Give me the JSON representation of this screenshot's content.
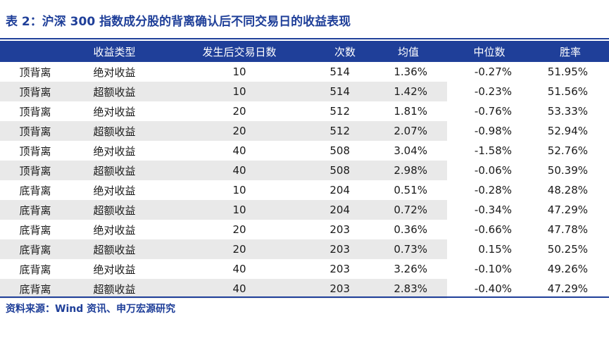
{
  "title": "表 2：沪深 300 指数成分股的背离确认后不同交易日的收益表现",
  "table": {
    "headers": [
      "",
      "收益类型",
      "发生后交易日数",
      "次数",
      "均值",
      "中位数",
      "胜率"
    ],
    "rows": [
      [
        "顶背离",
        "绝对收益",
        "10",
        "514",
        "1.36%",
        "-0.27%",
        "51.95%"
      ],
      [
        "顶背离",
        "超额收益",
        "10",
        "514",
        "1.42%",
        "-0.23%",
        "51.56%"
      ],
      [
        "顶背离",
        "绝对收益",
        "20",
        "512",
        "1.81%",
        "-0.76%",
        "53.33%"
      ],
      [
        "顶背离",
        "超额收益",
        "20",
        "512",
        "2.07%",
        "-0.98%",
        "52.94%"
      ],
      [
        "顶背离",
        "绝对收益",
        "40",
        "508",
        "3.04%",
        "-1.58%",
        "52.76%"
      ],
      [
        "顶背离",
        "超额收益",
        "40",
        "508",
        "2.98%",
        "-0.06%",
        "50.39%"
      ],
      [
        "底背离",
        "绝对收益",
        "10",
        "204",
        "0.51%",
        "-0.28%",
        "48.28%"
      ],
      [
        "底背离",
        "超额收益",
        "10",
        "204",
        "0.72%",
        "-0.34%",
        "47.29%"
      ],
      [
        "底背离",
        "绝对收益",
        "20",
        "203",
        "0.36%",
        "-0.66%",
        "47.78%"
      ],
      [
        "底背离",
        "超额收益",
        "20",
        "203",
        "0.73%",
        "0.15%",
        "50.25%"
      ],
      [
        "底背离",
        "绝对收益",
        "40",
        "203",
        "3.26%",
        "-0.10%",
        "49.26%"
      ],
      [
        "底背离",
        "超额收益",
        "40",
        "203",
        "2.83%",
        "-0.40%",
        "47.29%"
      ]
    ]
  },
  "source": "资料来源：Wind 资讯、申万宏源研究",
  "colors": {
    "accent": "#1f3f99",
    "stripe": "#e9e9e9"
  }
}
